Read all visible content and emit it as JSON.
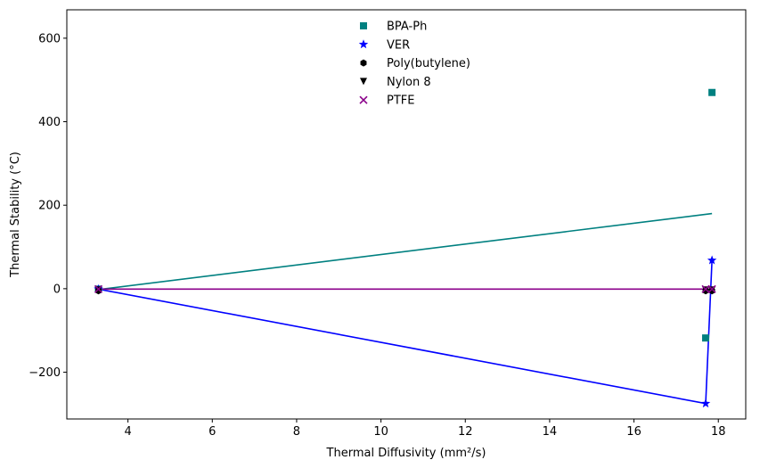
{
  "chart_data": {
    "type": "scatter",
    "title": "",
    "xlabel": "Thermal Diffusivity (mm²/s)",
    "ylabel": "Thermal Stability (°C)",
    "xlim": [
      2.55,
      18.65
    ],
    "ylim": [
      -312,
      668
    ],
    "xticks": [
      4,
      6,
      8,
      10,
      12,
      14,
      16,
      18
    ],
    "yticks": [
      -200,
      0,
      200,
      400,
      600
    ],
    "grid": false,
    "legend_position": "top-center",
    "series": [
      {
        "name": "BPA-Ph",
        "color": "#008080",
        "marker": "square",
        "points": [
          [
            3.3,
            -1
          ],
          [
            17.7,
            -118
          ],
          [
            17.85,
            470
          ]
        ],
        "fit_line": [
          [
            3.3,
            -2
          ],
          [
            17.85,
            180
          ]
        ]
      },
      {
        "name": "VER",
        "color": "#0000ff",
        "marker": "star",
        "points": [
          [
            3.3,
            -1
          ],
          [
            17.7,
            -275
          ],
          [
            17.85,
            68
          ]
        ],
        "connect": true
      },
      {
        "name": "Poly(butylene)",
        "color": "#000000",
        "marker": "hexagon",
        "points": [
          [
            3.3,
            -5
          ],
          [
            17.7,
            -5
          ],
          [
            17.85,
            -5
          ]
        ]
      },
      {
        "name": "Nylon 8",
        "color": "#000000",
        "marker": "triangle-down",
        "points": [
          [
            3.3,
            -3
          ],
          [
            17.7,
            -3
          ],
          [
            17.85,
            -3
          ]
        ]
      },
      {
        "name": "PTFE",
        "color": "#8b008b",
        "marker": "x",
        "points": [
          [
            3.3,
            -1
          ],
          [
            17.7,
            -1
          ],
          [
            17.85,
            -1
          ]
        ],
        "fit_line": [
          [
            3.3,
            -1
          ],
          [
            17.85,
            -1
          ]
        ]
      }
    ]
  }
}
